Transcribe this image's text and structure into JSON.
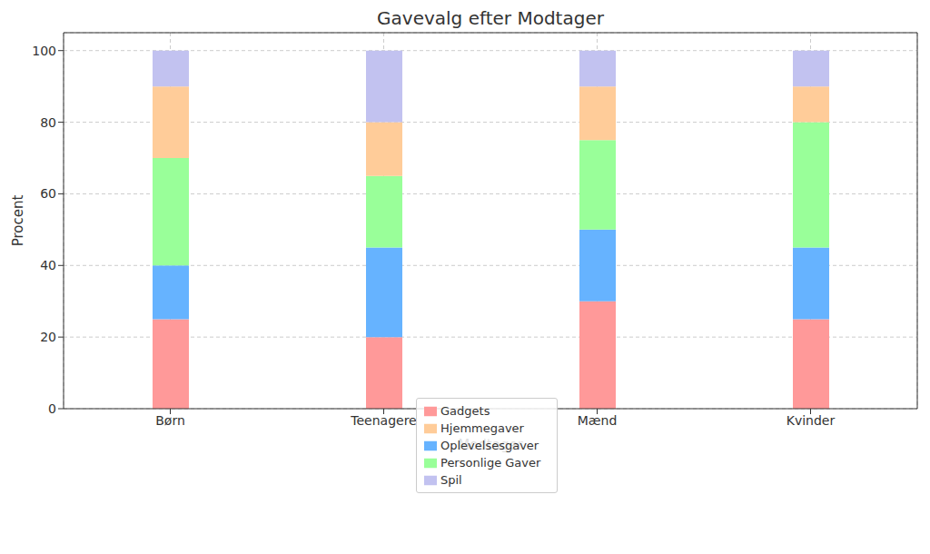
{
  "chart_data": {
    "type": "bar",
    "title": "Gavevalg efter Modtager",
    "x_label": "Modtager",
    "y_label": "Procent",
    "categories": [
      "Børn",
      "Teenagere",
      "Mænd",
      "Kvinder"
    ],
    "series": [
      {
        "name": "Gadgets",
        "color": "#ff9999",
        "values": [
          25,
          20,
          30,
          25
        ]
      },
      {
        "name": "Oplevelsesgaver",
        "color": "#66b3ff",
        "values": [
          15,
          25,
          20,
          20
        ]
      },
      {
        "name": "Personlige Gaver",
        "color": "#99ff99",
        "values": [
          30,
          20,
          25,
          35
        ]
      },
      {
        "name": "Hjemmegaver",
        "color": "#ffcc99",
        "values": [
          20,
          15,
          15,
          10
        ]
      },
      {
        "name": "Spil",
        "color": "#c2c2f0",
        "values": [
          10,
          20,
          10,
          10
        ]
      }
    ],
    "stacked": true,
    "ylim": [
      0,
      105
    ],
    "yticks": [
      0,
      20,
      40,
      60,
      80,
      100
    ],
    "grid": true,
    "legend": "lower center"
  }
}
